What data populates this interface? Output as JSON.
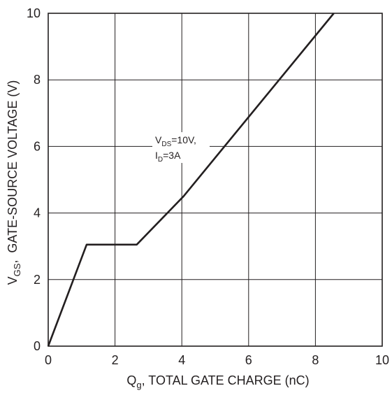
{
  "chart_data": {
    "type": "line",
    "title": "",
    "xlabel": {
      "main": "Q",
      "sub": "g",
      "rest": ", TOTAL GATE CHARGE (nC)"
    },
    "ylabel": {
      "main": "V",
      "sub": "GS",
      "rest": ",  GATE-SOURCE VOLTAGE (V)"
    },
    "xlim": [
      0,
      10
    ],
    "ylim": [
      0,
      10
    ],
    "x_ticks": [
      "0",
      "2",
      "4",
      "6",
      "8",
      "10"
    ],
    "y_ticks": [
      "0",
      "2",
      "4",
      "6",
      "8",
      "10"
    ],
    "grid": true,
    "series": [
      {
        "x": [
          0,
          1.15,
          2.65,
          4.05,
          8.55
        ],
        "y": [
          0,
          3.05,
          3.05,
          4.5,
          10
        ]
      }
    ],
    "annotations": {
      "line1": {
        "main": "V",
        "sub": "DS",
        "rest": "=10V,"
      },
      "line2": {
        "main": "I",
        "sub": "D",
        "rest": "=3A"
      }
    },
    "colors": {
      "line": "#231f20",
      "grid": "#231f20"
    }
  }
}
